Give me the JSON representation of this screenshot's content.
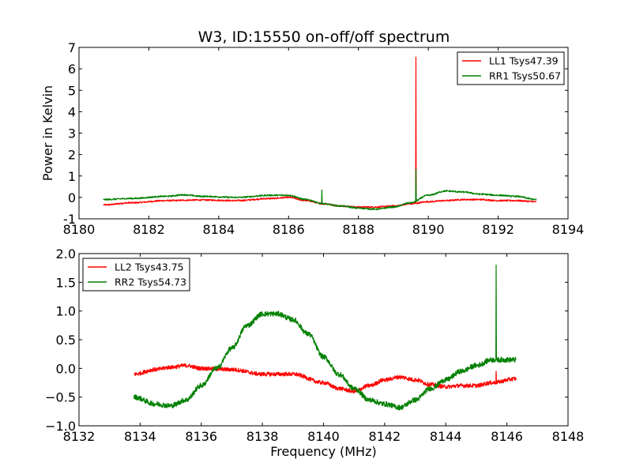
{
  "title": "W3, ID:15550 on-off/off spectrum",
  "chart_data": [
    {
      "type": "line",
      "title": "W3, ID:15550 on-off/off spectrum",
      "xlabel": "",
      "ylabel": "Power in Kelvin",
      "xlim": [
        8180,
        8194
      ],
      "ylim": [
        -1,
        7
      ],
      "xticks": [
        8180,
        8182,
        8184,
        8186,
        8188,
        8190,
        8192,
        8194
      ],
      "yticks": [
        -1,
        0,
        1,
        2,
        3,
        4,
        5,
        6,
        7
      ],
      "legend_position": "top-right",
      "series": [
        {
          "name": "LL1 Tsys47.39",
          "color": "#ff0000",
          "x_range": [
            8180.7,
            8193.1
          ],
          "noise": 0.035,
          "x": [
            8180.7,
            8181.5,
            8182.5,
            8183.5,
            8184.5,
            8185.5,
            8186.0,
            8186.5,
            8187.0,
            8187.5,
            8188.0,
            8188.5,
            8189.0,
            8189.5,
            8190.0,
            8190.5,
            8191.0,
            8191.5,
            8192.0,
            8192.5,
            8193.1
          ],
          "y": [
            -0.35,
            -0.25,
            -0.15,
            -0.12,
            -0.15,
            -0.05,
            0.0,
            -0.15,
            -0.3,
            -0.4,
            -0.45,
            -0.45,
            -0.4,
            -0.3,
            -0.2,
            -0.15,
            -0.1,
            -0.1,
            -0.15,
            -0.15,
            -0.2
          ],
          "spikes": [
            {
              "x": 8189.65,
              "y": 6.55
            }
          ]
        },
        {
          "name": "RR1 Tsys50.67",
          "color": "#008000",
          "x_range": [
            8180.7,
            8193.1
          ],
          "noise": 0.035,
          "x": [
            8180.7,
            8181.5,
            8182.5,
            8183.0,
            8183.5,
            8184.5,
            8185.5,
            8186.0,
            8186.5,
            8187.0,
            8187.5,
            8188.0,
            8188.5,
            8189.0,
            8189.5,
            8190.0,
            8190.5,
            8191.0,
            8191.5,
            8192.0,
            8192.5,
            8193.1
          ],
          "y": [
            -0.1,
            -0.05,
            0.05,
            0.12,
            0.05,
            0.0,
            0.1,
            0.1,
            -0.1,
            -0.3,
            -0.4,
            -0.5,
            -0.55,
            -0.45,
            -0.25,
            0.1,
            0.3,
            0.25,
            0.15,
            0.1,
            0.05,
            -0.1
          ],
          "spikes": [
            {
              "x": 8186.95,
              "y": 0.35
            },
            {
              "x": 8189.65,
              "y": 1.3
            }
          ]
        }
      ]
    },
    {
      "type": "line",
      "title": "",
      "xlabel": "Frequency (MHz)",
      "ylabel": "",
      "xlim": [
        8132,
        8148
      ],
      "ylim": [
        -1.0,
        2.0
      ],
      "xticks": [
        8132,
        8134,
        8136,
        8138,
        8140,
        8142,
        8144,
        8146,
        8148
      ],
      "yticks": [
        -1.0,
        -0.5,
        0.0,
        0.5,
        1.0,
        1.5,
        2.0
      ],
      "ytick_labels": [
        "−1.0",
        "−0.5",
        "0.0",
        "0.5",
        "1.0",
        "1.5",
        "2.0"
      ],
      "legend_position": "top-left",
      "series": [
        {
          "name": "LL2 Tsys43.75",
          "color": "#ff0000",
          "x_range": [
            8133.8,
            8146.3
          ],
          "noise": 0.035,
          "x": [
            8133.8,
            8134.5,
            8135.0,
            8135.5,
            8136.0,
            8137.0,
            8138.0,
            8139.0,
            8140.0,
            8140.5,
            8141.0,
            8141.5,
            8142.0,
            8142.5,
            8143.0,
            8143.5,
            8144.0,
            8144.5,
            8145.0,
            8145.5,
            8146.3
          ],
          "y": [
            -0.1,
            -0.02,
            0.02,
            0.05,
            0.0,
            -0.02,
            -0.1,
            -0.1,
            -0.25,
            -0.35,
            -0.4,
            -0.3,
            -0.2,
            -0.15,
            -0.2,
            -0.28,
            -0.32,
            -0.3,
            -0.3,
            -0.25,
            -0.18
          ],
          "spikes": [
            {
              "x": 8145.65,
              "y": -0.05
            }
          ]
        },
        {
          "name": "RR2 Tsys54.73",
          "color": "#008000",
          "x_range": [
            8133.8,
            8146.3
          ],
          "noise": 0.045,
          "x": [
            8133.8,
            8134.5,
            8135.0,
            8135.5,
            8136.0,
            8136.5,
            8137.0,
            8137.5,
            8138.0,
            8138.5,
            8139.0,
            8139.5,
            8140.0,
            8140.5,
            8141.0,
            8141.5,
            8142.0,
            8142.5,
            8143.0,
            8143.5,
            8144.0,
            8144.5,
            8145.0,
            8145.5,
            8146.3
          ],
          "y": [
            -0.5,
            -0.62,
            -0.65,
            -0.55,
            -0.3,
            0.0,
            0.35,
            0.75,
            0.95,
            0.95,
            0.85,
            0.6,
            0.2,
            -0.1,
            -0.35,
            -0.55,
            -0.62,
            -0.68,
            -0.55,
            -0.35,
            -0.2,
            -0.05,
            0.05,
            0.15,
            0.15
          ],
          "spikes": [
            {
              "x": 8145.65,
              "y": 1.8
            }
          ]
        }
      ]
    }
  ]
}
